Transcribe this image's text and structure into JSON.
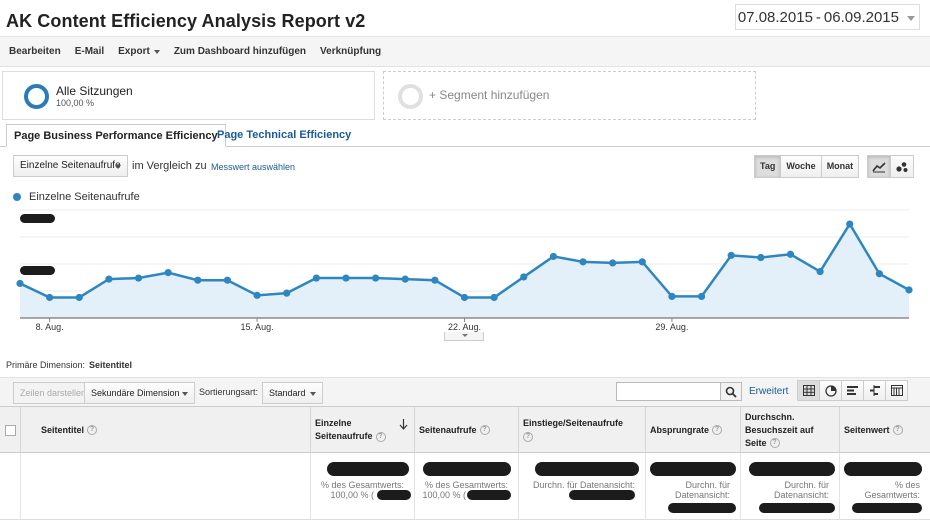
{
  "report": {
    "title": "AK Content Efficiency Analysis Report v2",
    "date_start": "07.08.2015",
    "date_sep": "-",
    "date_end": "06.09.2015"
  },
  "toolbar": {
    "edit": "Bearbeiten",
    "email": "E-Mail",
    "export": "Export",
    "dashboard": "Zum Dashboard hinzufügen",
    "shortcut": "Verknüpfung"
  },
  "segments": {
    "active_name": "Alle Sitzungen",
    "active_pct": "100,00 %",
    "add_label": "+ Segment hinzufügen",
    "accent_color": "#2b7bb9"
  },
  "tabs": [
    {
      "label": "Page Business Performance Efficiency",
      "active": true
    },
    {
      "label": "Page Technical Efficiency",
      "active": false
    }
  ],
  "controls": {
    "metric": "Einzelne Seitenaufrufe",
    "compare_text": "im Vergleich zu",
    "compare_link": "Messwert auswählen",
    "periods": [
      "Tag",
      "Woche",
      "Monat"
    ],
    "active_period": "Tag"
  },
  "chart_data": {
    "type": "area",
    "series": [
      {
        "name": "Einzelne Seitenaufrufe",
        "color": "#2e86c1",
        "values": [
          3.2,
          1.9,
          1.9,
          3.6,
          3.7,
          4.2,
          3.5,
          3.5,
          2.1,
          2.3,
          3.7,
          3.7,
          3.7,
          3.6,
          3.5,
          1.9,
          1.9,
          3.8,
          5.7,
          5.2,
          5.1,
          5.2,
          2.0,
          2.0,
          5.8,
          5.6,
          5.9,
          4.3,
          8.7,
          4.1,
          2.6
        ]
      }
    ],
    "x_tick_labels": [
      "8. Aug.",
      "15. Aug.",
      "22. Aug.",
      "29. Aug."
    ],
    "x_tick_index": [
      1,
      8,
      15,
      22
    ],
    "ylim": [
      0,
      10
    ],
    "grid": true,
    "legend": "top-left"
  },
  "primary_dimension": {
    "label": "Primäre Dimension:",
    "value": "Seitentitel"
  },
  "table_toolbar": {
    "show_rows": "Zeilen darstellen",
    "secondary_dim": "Sekundäre Dimension",
    "sort_label": "Sortierungsart:",
    "sort_value": "Standard",
    "search_value": "",
    "advanced": "Erweitert"
  },
  "table": {
    "columns": [
      "Seitentitel",
      "Einzelne Seitenaufrufe",
      "Seitenaufrufe",
      "Einstiege/Seitenaufrufe",
      "Absprungrate",
      "Durchschn. Besuchszeit auf Seite",
      "Seitenwert"
    ],
    "totals_sub": {
      "pct_of_total": "% des Gesamtwerts:",
      "pct_value": "100,00 % (",
      "avg_view": "Durchn. für Datenansicht:",
      "avg_view_short": "Durchn. für",
      "avg_view_tail": "Datenansicht:",
      "pct_short": "% des",
      "pct_tail": "Gesamtwerts:"
    }
  }
}
